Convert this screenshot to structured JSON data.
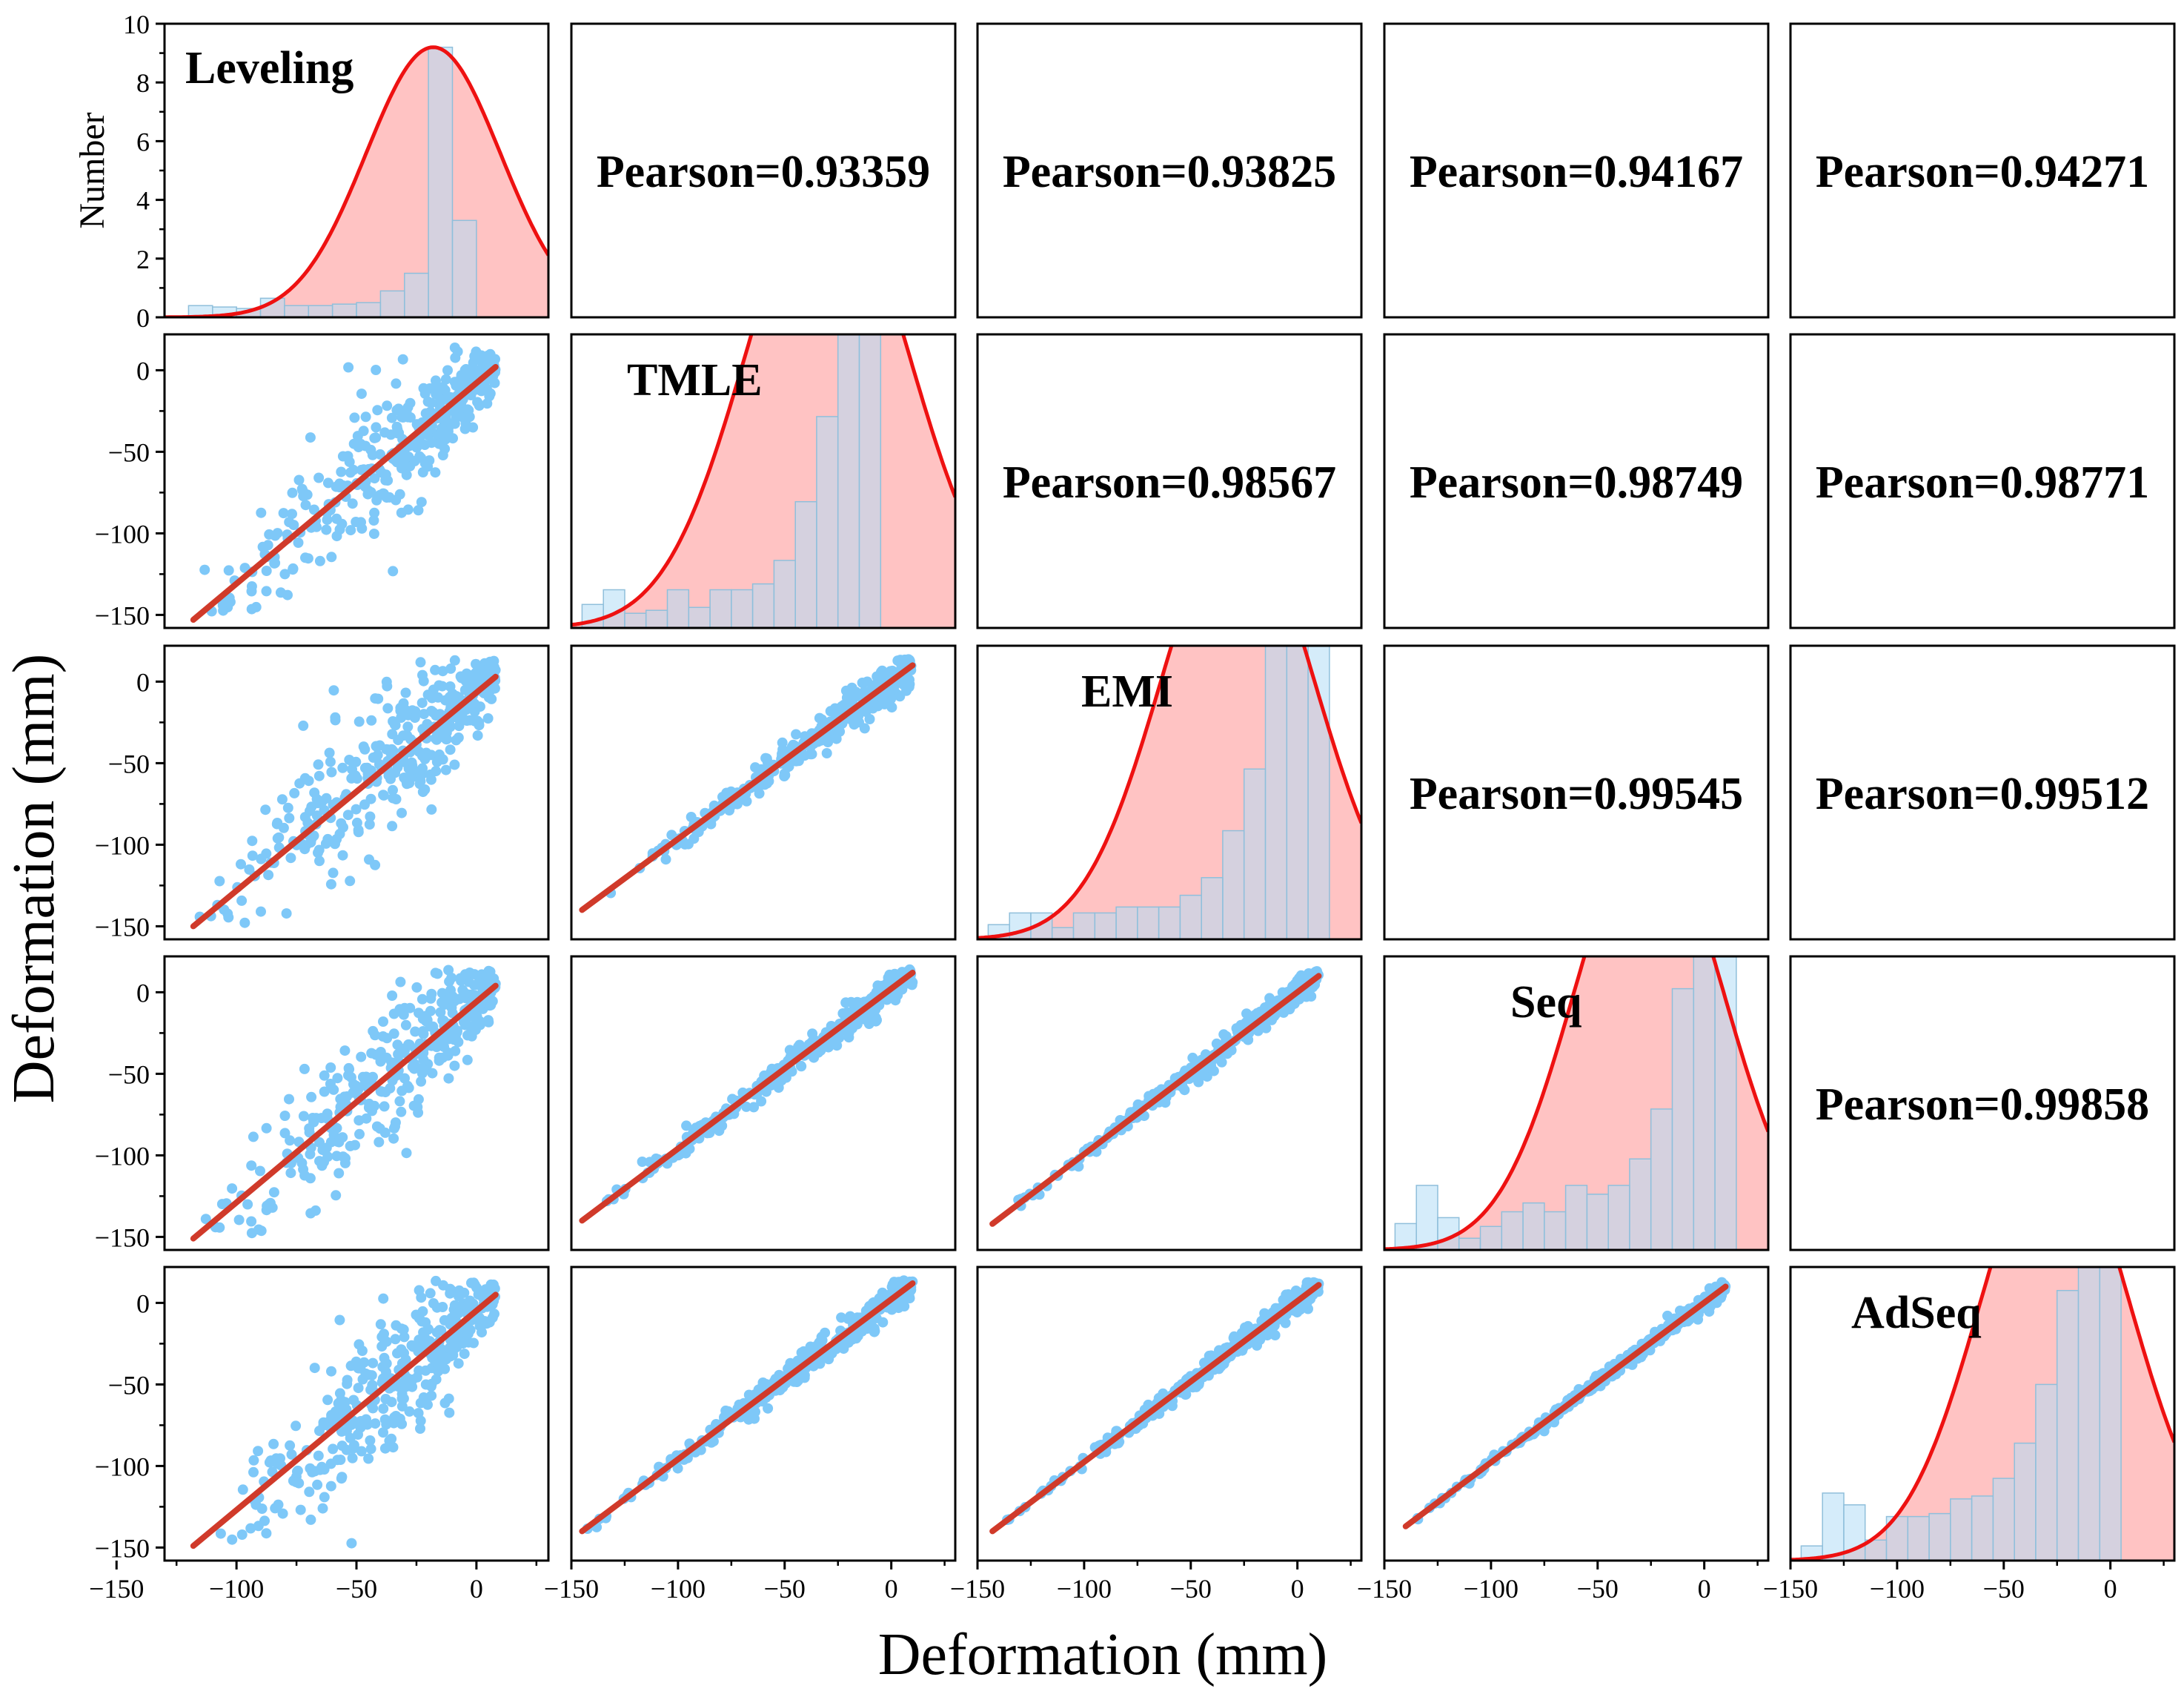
{
  "chart_data": {
    "type": "scatter-matrix",
    "xlabel": "Deformation (mm)",
    "ylabel": "Deformation (mm)",
    "hist_ylabel": "Number",
    "variables": [
      "Leveling",
      "TMLE",
      "EMI",
      "Seq",
      "AdSeq"
    ],
    "x_ticks": [
      -150,
      -100,
      -50,
      0
    ],
    "y_ticks_scatter": [
      0,
      -50,
      -100,
      -150
    ],
    "hist_y_ticks": [
      0,
      2,
      4,
      6,
      8,
      10
    ],
    "hist_ylim": [
      0,
      10
    ],
    "x_ranges": [
      [
        -130,
        30
      ],
      [
        -150,
        30
      ],
      [
        -150,
        30
      ],
      [
        -150,
        30
      ],
      [
        -150,
        30
      ]
    ],
    "y_range": [
      -158,
      22
    ],
    "pearson": [
      {
        "row": 0,
        "col": 1,
        "text": "Pearson=0.93359"
      },
      {
        "row": 0,
        "col": 2,
        "text": "Pearson=0.93825"
      },
      {
        "row": 0,
        "col": 3,
        "text": "Pearson=0.94167"
      },
      {
        "row": 0,
        "col": 4,
        "text": "Pearson=0.94271"
      },
      {
        "row": 1,
        "col": 2,
        "text": "Pearson=0.98567"
      },
      {
        "row": 1,
        "col": 3,
        "text": "Pearson=0.98749"
      },
      {
        "row": 1,
        "col": 4,
        "text": "Pearson=0.98771"
      },
      {
        "row": 2,
        "col": 3,
        "text": "Pearson=0.99545"
      },
      {
        "row": 2,
        "col": 4,
        "text": "Pearson=0.99512"
      },
      {
        "row": 3,
        "col": 4,
        "text": "Pearson=0.99858"
      }
    ],
    "histograms": [
      {
        "name": "Leveling",
        "bin_start": -120,
        "bin_width": 10,
        "counts": [
          0.4,
          0.35,
          0.3,
          0.65,
          0.4,
          0.4,
          0.45,
          0.5,
          0.9,
          1.5,
          9.2,
          3.3
        ],
        "normal": {
          "mean": -18,
          "sd": 28,
          "peak": 9.2
        }
      },
      {
        "name": "TMLE",
        "bin_start": -145,
        "bin_width": 10,
        "counts": [
          0.8,
          1.3,
          0.5,
          0.6,
          1.3,
          0.7,
          1.3,
          1.3,
          1.5,
          2.3,
          4.3,
          7.2,
          15.5,
          10.4
        ],
        "normal": {
          "mean": -30,
          "sd": 38,
          "peak": 15.5
        }
      },
      {
        "name": "EMI",
        "bin_start": -145,
        "bin_width": 10,
        "counts": [
          0.5,
          0.9,
          0.9,
          0.4,
          0.9,
          0.9,
          1.1,
          1.1,
          1.1,
          1.5,
          2.1,
          3.7,
          5.8,
          11.2,
          14.5,
          10.6
        ],
        "normal": {
          "mean": -28,
          "sd": 36,
          "peak": 14.5
        }
      },
      {
        "name": "Seq",
        "bin_start": -145,
        "bin_width": 10,
        "counts": [
          0.9,
          2.2,
          1.1,
          0.4,
          0.8,
          1.3,
          1.6,
          1.3,
          2.2,
          1.9,
          2.2,
          3.1,
          4.8,
          8.9,
          15.5,
          10.4
        ],
        "normal": {
          "mean": -26,
          "sd": 35,
          "peak": 14.5
        }
      },
      {
        "name": "AdSeq",
        "bin_start": -145,
        "bin_width": 10,
        "counts": [
          0.5,
          2.3,
          1.9,
          0.7,
          1.5,
          1.5,
          1.6,
          2.1,
          2.2,
          2.8,
          4.0,
          6.0,
          9.2,
          15.2,
          10.9
        ],
        "normal": {
          "mean": -26,
          "sd": 35,
          "peak": 14.5
        }
      }
    ],
    "scatter_panels": [
      {
        "row": 1,
        "col": 0,
        "x": "Leveling",
        "y": "TMLE",
        "fit_start": [
          -118,
          -153
        ],
        "fit_end": [
          8,
          2
        ],
        "spread": 18
      },
      {
        "row": 2,
        "col": 0,
        "x": "Leveling",
        "y": "EMI",
        "fit_start": [
          -118,
          -150
        ],
        "fit_end": [
          8,
          3
        ],
        "spread": 18
      },
      {
        "row": 2,
        "col": 1,
        "x": "TMLE",
        "y": "EMI",
        "fit_start": [
          -145,
          -140
        ],
        "fit_end": [
          10,
          10
        ],
        "spread": 5
      },
      {
        "row": 3,
        "col": 0,
        "x": "Leveling",
        "y": "Seq",
        "fit_start": [
          -118,
          -151
        ],
        "fit_end": [
          8,
          4
        ],
        "spread": 18
      },
      {
        "row": 3,
        "col": 1,
        "x": "TMLE",
        "y": "Seq",
        "fit_start": [
          -145,
          -140
        ],
        "fit_end": [
          10,
          12
        ],
        "spread": 4
      },
      {
        "row": 3,
        "col": 2,
        "x": "EMI",
        "y": "Seq",
        "fit_start": [
          -143,
          -142
        ],
        "fit_end": [
          10,
          10
        ],
        "spread": 3
      },
      {
        "row": 4,
        "col": 0,
        "x": "Leveling",
        "y": "AdSeq",
        "fit_start": [
          -118,
          -149
        ],
        "fit_end": [
          8,
          5
        ],
        "spread": 18
      },
      {
        "row": 4,
        "col": 1,
        "x": "TMLE",
        "y": "AdSeq",
        "fit_start": [
          -145,
          -140
        ],
        "fit_end": [
          10,
          12
        ],
        "spread": 4
      },
      {
        "row": 4,
        "col": 2,
        "x": "EMI",
        "y": "AdSeq",
        "fit_start": [
          -143,
          -140
        ],
        "fit_end": [
          10,
          11
        ],
        "spread": 3
      },
      {
        "row": 4,
        "col": 3,
        "x": "Seq",
        "y": "AdSeq",
        "fit_start": [
          -140,
          -137
        ],
        "fit_end": [
          10,
          10
        ],
        "spread": 2
      }
    ],
    "colors": {
      "scatter": "#7ec8f8",
      "fit": "#d03a2a",
      "hist_fill": "#b3dcf5",
      "hist_stroke": "#8fbfdb",
      "curve": "#ee1111",
      "curve_fill": "#ffb8b8"
    }
  }
}
